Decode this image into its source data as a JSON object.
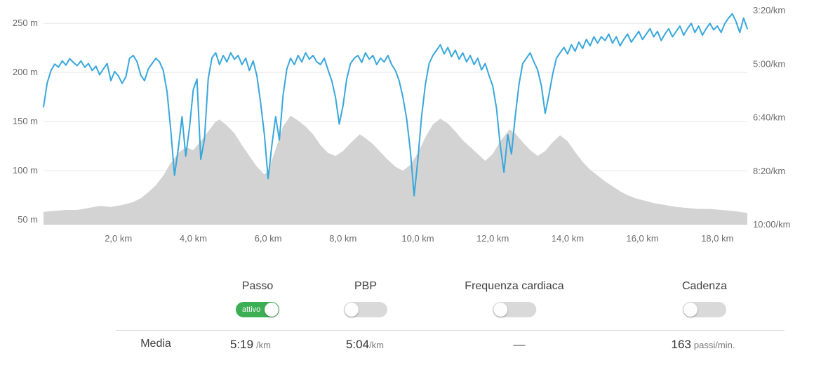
{
  "colors": {
    "pace_line": "#38a7dc",
    "elevation_fill": "#d3d3d3",
    "gridline": "#e8e8e8",
    "axis_text": "#6b6b6b",
    "toggle_on": "#3cae54",
    "toggle_off": "#d9d9d9"
  },
  "chart_data": {
    "type": "line",
    "title": "",
    "x_unit": "km",
    "x_range": [
      0,
      18.8
    ],
    "x_tick_values": [
      2,
      4,
      6,
      8,
      10,
      12,
      14,
      16,
      18
    ],
    "x_tick_labels": [
      "2,0 km",
      "4,0 km",
      "6,0 km",
      "8,0 km",
      "10,0 km",
      "12,0 km",
      "14,0 km",
      "16,0 km",
      "18,0 km"
    ],
    "left_axis": {
      "label": "elevation-m",
      "tick_values": [
        50,
        100,
        150,
        200,
        250
      ],
      "tick_labels": [
        "50 m",
        "100 m",
        "150 m",
        "200 m",
        "250 m"
      ],
      "range": [
        45,
        263
      ],
      "grid": true
    },
    "right_axis": {
      "label": "pace-per-km",
      "tick_values_seconds": [
        200,
        300,
        400,
        500,
        600
      ],
      "tick_labels": [
        "3:20/km",
        "5:00/km",
        "6:40/km",
        "8:20/km",
        "10:00/km"
      ],
      "range_seconds": [
        200,
        600
      ],
      "direction": "slower-down"
    },
    "series": [
      {
        "name": "elevation",
        "type": "area",
        "axis": "left",
        "points": [
          [
            0,
            58
          ],
          [
            0.3,
            59
          ],
          [
            0.6,
            60
          ],
          [
            0.9,
            60
          ],
          [
            1.2,
            62
          ],
          [
            1.5,
            64
          ],
          [
            1.8,
            63
          ],
          [
            2.1,
            65
          ],
          [
            2.4,
            68
          ],
          [
            2.6,
            72
          ],
          [
            2.8,
            78
          ],
          [
            3.0,
            85
          ],
          [
            3.2,
            95
          ],
          [
            3.4,
            108
          ],
          [
            3.6,
            118
          ],
          [
            3.8,
            124
          ],
          [
            4.0,
            121
          ],
          [
            4.2,
            130
          ],
          [
            4.4,
            140
          ],
          [
            4.6,
            150
          ],
          [
            4.7,
            152
          ],
          [
            4.9,
            146
          ],
          [
            5.1,
            138
          ],
          [
            5.3,
            126
          ],
          [
            5.5,
            115
          ],
          [
            5.7,
            104
          ],
          [
            5.9,
            96
          ],
          [
            6.0,
            100
          ],
          [
            6.2,
            122
          ],
          [
            6.4,
            145
          ],
          [
            6.6,
            156
          ],
          [
            6.8,
            151
          ],
          [
            7.0,
            145
          ],
          [
            7.2,
            137
          ],
          [
            7.4,
            126
          ],
          [
            7.6,
            118
          ],
          [
            7.8,
            115
          ],
          [
            8.0,
            120
          ],
          [
            8.2,
            128
          ],
          [
            8.45,
            137
          ],
          [
            8.6,
            133
          ],
          [
            8.8,
            127
          ],
          [
            9.0,
            119
          ],
          [
            9.2,
            111
          ],
          [
            9.4,
            104
          ],
          [
            9.6,
            100
          ],
          [
            9.8,
            106
          ],
          [
            10.0,
            118
          ],
          [
            10.2,
            134
          ],
          [
            10.4,
            147
          ],
          [
            10.6,
            153
          ],
          [
            10.8,
            148
          ],
          [
            11.0,
            140
          ],
          [
            11.2,
            131
          ],
          [
            11.4,
            124
          ],
          [
            11.6,
            117
          ],
          [
            11.8,
            110
          ],
          [
            12.0,
            117
          ],
          [
            12.2,
            130
          ],
          [
            12.45,
            142
          ],
          [
            12.6,
            138
          ],
          [
            12.8,
            129
          ],
          [
            13.0,
            121
          ],
          [
            13.2,
            115
          ],
          [
            13.4,
            120
          ],
          [
            13.6,
            129
          ],
          [
            13.8,
            136
          ],
          [
            14.0,
            130
          ],
          [
            14.2,
            119
          ],
          [
            14.4,
            109
          ],
          [
            14.6,
            101
          ],
          [
            14.8,
            95
          ],
          [
            15.0,
            89
          ],
          [
            15.2,
            84
          ],
          [
            15.4,
            79
          ],
          [
            15.6,
            75
          ],
          [
            15.8,
            72
          ],
          [
            16.0,
            70
          ],
          [
            16.3,
            67
          ],
          [
            16.6,
            65
          ],
          [
            16.9,
            63
          ],
          [
            17.2,
            62
          ],
          [
            17.5,
            61
          ],
          [
            17.8,
            61
          ],
          [
            18.1,
            60
          ],
          [
            18.4,
            59
          ],
          [
            18.8,
            57
          ]
        ]
      },
      {
        "name": "pace",
        "type": "line",
        "axis": "right",
        "x_start": 0,
        "x_step": 0.1,
        "values_seconds": [
          380,
          335,
          312,
          300,
          306,
          294,
          302,
          290,
          297,
          303,
          294,
          306,
          299,
          312,
          304,
          320,
          309,
          299,
          331,
          314,
          322,
          336,
          324,
          289,
          284,
          296,
          321,
          331,
          309,
          299,
          289,
          296,
          312,
          352,
          424,
          508,
          458,
          398,
          472,
          418,
          348,
          328,
          478,
          440,
          328,
          288,
          279,
          301,
          284,
          296,
          279,
          291,
          284,
          301,
          289,
          312,
          294,
          322,
          372,
          432,
          514,
          452,
          398,
          442,
          358,
          309,
          289,
          301,
          284,
          296,
          279,
          291,
          284,
          296,
          301,
          289,
          311,
          331,
          362,
          412,
          378,
          328,
          299,
          289,
          284,
          297,
          279,
          291,
          284,
          301,
          289,
          296,
          284,
          301,
          312,
          331,
          362,
          402,
          462,
          546,
          478,
          398,
          338,
          299,
          284,
          274,
          264,
          281,
          269,
          286,
          274,
          291,
          279,
          296,
          284,
          301,
          289,
          311,
          299,
          321,
          341,
          382,
          452,
          502,
          432,
          468,
          398,
          338,
          299,
          289,
          279,
          296,
          311,
          341,
          392,
          358,
          319,
          289,
          279,
          269,
          281,
          264,
          276,
          259,
          271,
          254,
          266,
          249,
          261,
          249,
          256,
          244,
          261,
          249,
          266,
          254,
          244,
          259,
          249,
          239,
          254,
          244,
          234,
          249,
          239,
          256,
          244,
          234,
          249,
          239,
          229,
          246,
          234,
          224,
          241,
          229,
          246,
          234,
          224,
          236,
          229,
          241,
          224,
          214,
          206,
          221,
          241,
          214,
          234
        ]
      }
    ]
  },
  "toggles": [
    {
      "label": "Passo",
      "state": "on",
      "state_label": "attivo"
    },
    {
      "label": "PBP",
      "state": "off",
      "state_label": ""
    },
    {
      "label": "Frequenza cardiaca",
      "state": "off",
      "state_label": ""
    },
    {
      "label": "Cadenza",
      "state": "off",
      "state_label": ""
    }
  ],
  "summary": {
    "row_label": "Media",
    "pace_value": "5:19",
    "pace_unit": "/km",
    "pbp_value": "5:04",
    "pbp_unit": "/km",
    "hr_value": "—",
    "cadence_value": "163",
    "cadence_unit": "passi/min."
  }
}
